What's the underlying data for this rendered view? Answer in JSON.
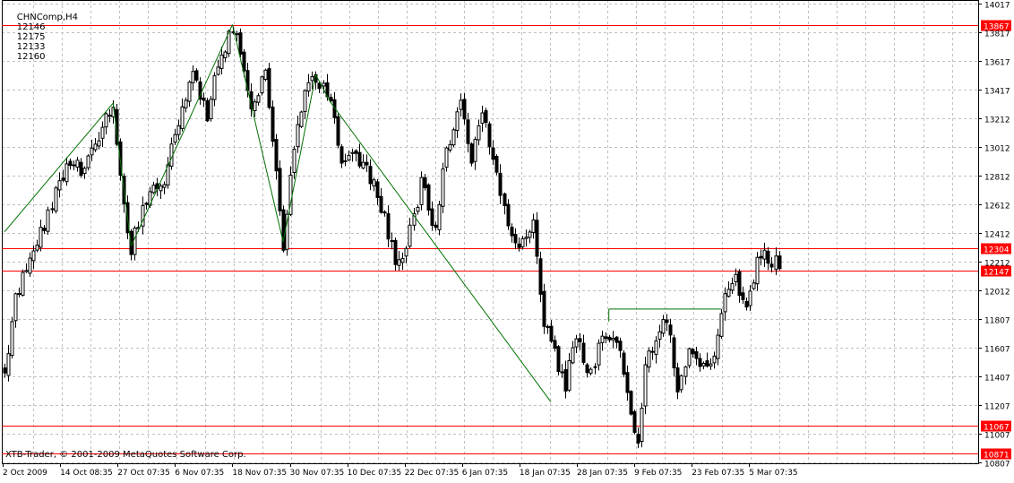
{
  "window": {
    "symbol_timeframe": "CHNComp,H4",
    "ohlc": [
      "12146",
      "12175",
      "12133",
      "12160"
    ],
    "copyright": "XTB-Trader, © 2001-2009 MetaQuotes Software Corp."
  },
  "colors": {
    "background": "#ffffff",
    "grid": "#c0c0c0",
    "candle": "#000000",
    "level_line": "#ff0000",
    "trend_line": "#007000",
    "level_label_bg": "#ff0000",
    "level_label_text": "#ffffff"
  },
  "chart_data": {
    "type": "candlestick",
    "grid": true,
    "y_axis": {
      "side": "right",
      "range": [
        10807,
        14017
      ],
      "ticks": [
        14017,
        13817,
        13617,
        13417,
        13212,
        13012,
        12812,
        12612,
        12412,
        12212,
        12012,
        11807,
        11607,
        11407,
        11207,
        11007,
        10807
      ]
    },
    "x_axis": {
      "labels": [
        "2 Oct 2009",
        "14 Oct 08:35",
        "27 Oct 07:35",
        "6 Nov 07:35",
        "18 Nov 07:35",
        "30 Nov 07:35",
        "10 Dec 07:35",
        "22 Dec 07:35",
        "6 Jan 07:35",
        "18 Jan 07:35",
        "28 Jan 07:35",
        "9 Feb 07:35",
        "23 Feb 07:35",
        "5 Mar 07:35"
      ]
    },
    "horizontal_levels": [
      "13867",
      "12304",
      "12147",
      "11067",
      "10871"
    ],
    "trend_path": [
      {
        "bar": 0,
        "price": 12420
      },
      {
        "bar": 30,
        "price": 13320
      },
      {
        "bar": 35,
        "price": 12320
      },
      {
        "bar": 63,
        "price": 13870
      },
      {
        "bar": 77,
        "price": 12350
      },
      {
        "bar": 86,
        "price": 13520
      },
      {
        "bar": 90,
        "price": 13330
      },
      {
        "bar": 151,
        "price": 11230
      }
    ],
    "flat_segment": {
      "from_bar": 167,
      "to_bar": 198,
      "price": 11880
    },
    "waypoints": [
      [
        0,
        11460
      ],
      [
        3,
        11950
      ],
      [
        6,
        12200
      ],
      [
        10,
        12420
      ],
      [
        17,
        12900
      ],
      [
        22,
        12850
      ],
      [
        30,
        13300
      ],
      [
        33,
        12600
      ],
      [
        35,
        12320
      ],
      [
        40,
        12700
      ],
      [
        44,
        12750
      ],
      [
        47,
        13100
      ],
      [
        52,
        13550
      ],
      [
        56,
        13250
      ],
      [
        59,
        13600
      ],
      [
        63,
        13850
      ],
      [
        66,
        13550
      ],
      [
        68,
        13250
      ],
      [
        72,
        13600
      ],
      [
        77,
        12350
      ],
      [
        80,
        13050
      ],
      [
        83,
        13400
      ],
      [
        86,
        13500
      ],
      [
        90,
        13300
      ],
      [
        93,
        12900
      ],
      [
        96,
        12950
      ],
      [
        100,
        12850
      ],
      [
        104,
        12600
      ],
      [
        108,
        12200
      ],
      [
        111,
        12300
      ],
      [
        115,
        12750
      ],
      [
        119,
        12450
      ],
      [
        122,
        13000
      ],
      [
        126,
        13330
      ],
      [
        129,
        12900
      ],
      [
        132,
        13250
      ],
      [
        135,
        12900
      ],
      [
        138,
        12550
      ],
      [
        142,
        12350
      ],
      [
        146,
        12450
      ],
      [
        149,
        11800
      ],
      [
        152,
        11550
      ],
      [
        155,
        11350
      ],
      [
        158,
        11700
      ],
      [
        162,
        11400
      ],
      [
        165,
        11700
      ],
      [
        170,
        11600
      ],
      [
        173,
        11100
      ],
      [
        175,
        10950
      ],
      [
        177,
        11500
      ],
      [
        180,
        11650
      ],
      [
        183,
        11820
      ],
      [
        186,
        11350
      ],
      [
        189,
        11600
      ],
      [
        192,
        11450
      ],
      [
        196,
        11500
      ],
      [
        199,
        11950
      ],
      [
        202,
        12100
      ],
      [
        205,
        11850
      ],
      [
        208,
        12200
      ],
      [
        211,
        12260
      ],
      [
        214,
        12160
      ]
    ]
  }
}
